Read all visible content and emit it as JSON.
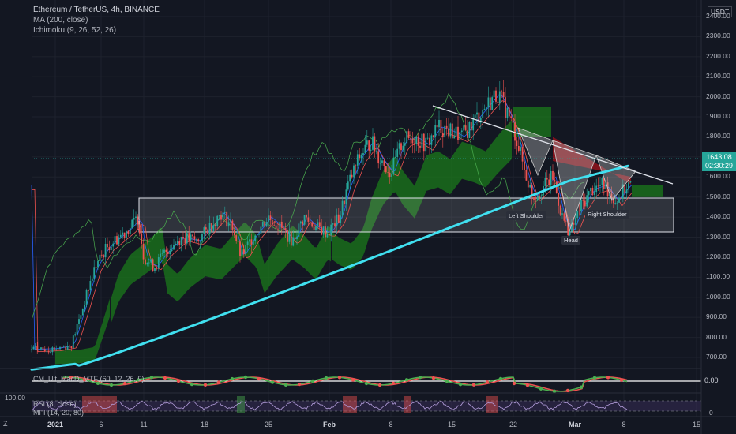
{
  "legend": {
    "symbol": "Ethereum / TetherUS, 4h, BINANCE",
    "ma": "MA (200, close)",
    "ichimoku": "Ichimoku (9, 26, 52, 26)"
  },
  "price_axis": {
    "currency": "USDT",
    "ticks": [
      "2400.00",
      "2300.00",
      "2200.00",
      "2100.00",
      "2000.00",
      "1900.00",
      "1800.00",
      "1700.00",
      "1600.00",
      "1500.00",
      "1400.00",
      "1300.00",
      "1200.00",
      "1100.00",
      "1000.00",
      "900.00",
      "800.00",
      "700.00"
    ],
    "last_price": "1643.08",
    "countdown": "02:30:29"
  },
  "indicators": {
    "macd_label": "CM_Ult_MacD_MTF (60, 12, 26, 9)",
    "macd_zero": "0.00",
    "rsi_label": "RSI (8, close)",
    "mfi_label": "MFI (14, 20, 80)",
    "rsi_hundred": "100.00",
    "rsi_zero": "0"
  },
  "time_axis": {
    "ticks": [
      "2021",
      "6",
      "11",
      "18",
      "25",
      "Feb",
      "8",
      "15",
      "22",
      "Mar",
      "8",
      "15"
    ]
  },
  "pattern_labels": {
    "left_shoulder": "Left Shoulder",
    "head": "Head",
    "right_shoulder": "Right Shoulder"
  },
  "z_button": "Z",
  "colors": {
    "background": "#131722",
    "up": "#26a69a",
    "down": "#ef5350",
    "ma": "#40e0f0",
    "cloud_green": "#1b7a1b",
    "cloud_red": "#a3121a"
  }
}
